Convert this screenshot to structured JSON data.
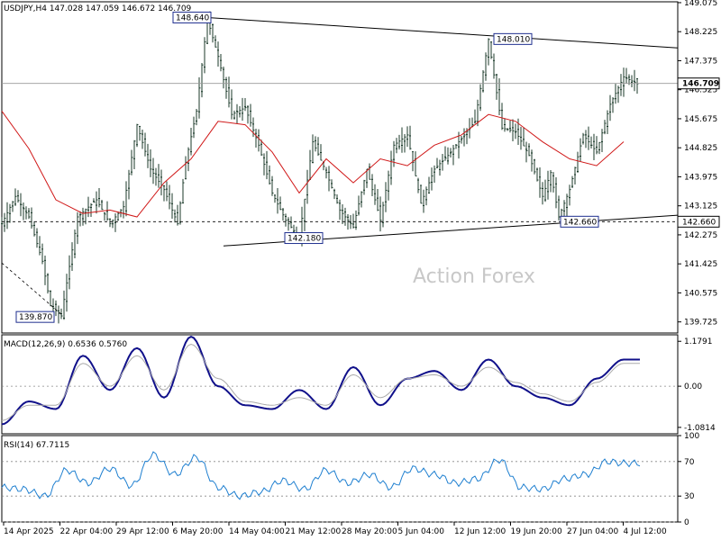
{
  "chart_data": [
    {
      "type": "candlestick",
      "header": "USDJPY,H4  147.028 147.059 146.672 146.709",
      "watermark": "Action Forex",
      "ylim": [
        139.4,
        149.1
      ],
      "y_ticks": [
        "149.075",
        "148.225",
        "147.375",
        "146.525",
        "145.675",
        "144.825",
        "143.975",
        "143.125",
        "142.275",
        "141.425",
        "140.575",
        "139.725"
      ],
      "y_tick_values": [
        149.075,
        148.225,
        147.375,
        146.525,
        145.675,
        144.825,
        143.975,
        143.125,
        142.275,
        141.425,
        140.575,
        139.725
      ],
      "last_price": "146.709",
      "last_price_value": 146.709,
      "support_level": "142.660",
      "support_value": 142.66,
      "x_ticks": [
        "14 Apr 2025",
        "22 Apr 04:00",
        "29 Apr 12:00",
        "6 May 20:00",
        "14 May 04:00",
        "21 May 12:00",
        "28 May 20:00",
        "5 Jun 04:00",
        "12 Jun 12:00",
        "19 Jun 20:00",
        "27 Jun 04:00",
        "4 Jul 12:00"
      ],
      "series": [
        {
          "name": "price",
          "x": [
            0,
            5,
            10,
            15,
            18,
            22,
            28,
            35,
            40,
            45,
            50,
            55,
            60,
            65,
            68,
            72,
            76,
            80,
            85,
            90,
            95,
            100,
            105,
            110,
            115,
            120,
            125,
            130,
            135,
            140,
            145,
            150,
            155,
            160,
            165,
            170,
            175,
            180,
            185,
            190,
            195,
            200,
            203,
            206,
            210,
            215,
            220,
            225,
            230,
            235,
            240,
            245,
            250
          ],
          "y": [
            142.6,
            143.4,
            142.8,
            141.5,
            140.2,
            139.9,
            142.8,
            143.3,
            142.6,
            143.1,
            145.5,
            144.2,
            143.6,
            142.6,
            144.4,
            145.9,
            148.6,
            147.5,
            145.8,
            146.0,
            144.9,
            143.5,
            142.7,
            142.2,
            145.0,
            144.1,
            143.0,
            142.5,
            144.2,
            142.7,
            144.9,
            145.2,
            143.2,
            144.2,
            144.6,
            145.1,
            145.6,
            148.0,
            145.4,
            145.3,
            144.6,
            143.4,
            144.1,
            142.8,
            143.6,
            145.2,
            144.7,
            146.1,
            146.9,
            146.7,
            146.7,
            146.7,
            146.7
          ]
        },
        {
          "name": "moving-average",
          "x": [
            0,
            10,
            20,
            30,
            40,
            50,
            60,
            70,
            80,
            90,
            100,
            110,
            120,
            130,
            140,
            150,
            160,
            170,
            180,
            190,
            200,
            210,
            220,
            230
          ],
          "y": [
            145.9,
            144.8,
            143.3,
            142.9,
            143.0,
            142.8,
            143.8,
            144.5,
            145.6,
            145.5,
            144.7,
            143.5,
            144.5,
            143.8,
            144.5,
            144.3,
            144.9,
            145.2,
            145.8,
            145.6,
            145.0,
            144.5,
            144.3,
            145.0
          ]
        }
      ],
      "trendlines": [
        {
          "label": "148.640",
          "value": 148.64
        },
        {
          "label": "148.010",
          "value": 148.01
        },
        {
          "label": "142.180",
          "value": 142.18
        },
        {
          "label": "142.660",
          "value": 142.66
        },
        {
          "label": "139.870",
          "value": 139.87
        }
      ]
    },
    {
      "type": "line",
      "header": "MACD(12,26,9) 0.6536 0.5760",
      "ylim": [
        -1.25,
        1.35
      ],
      "y_ticks": [
        "1.1791",
        "0.00",
        "-1.0814"
      ],
      "y_tick_values": [
        1.1791,
        0.0,
        -1.0814
      ],
      "series": [
        {
          "name": "macd",
          "x": [
            0,
            10,
            20,
            30,
            40,
            50,
            60,
            70,
            80,
            90,
            100,
            110,
            120,
            130,
            140,
            150,
            160,
            170,
            180,
            190,
            200,
            210,
            220,
            230
          ],
          "y": [
            -1.0,
            -0.4,
            -0.6,
            0.8,
            -0.1,
            1.0,
            -0.3,
            1.3,
            0.0,
            -0.5,
            -0.6,
            -0.1,
            -0.6,
            0.5,
            -0.5,
            0.2,
            0.4,
            -0.1,
            0.7,
            0.0,
            -0.3,
            -0.5,
            0.2,
            0.7
          ]
        },
        {
          "name": "signal",
          "x": [
            0,
            10,
            20,
            30,
            40,
            50,
            60,
            70,
            80,
            90,
            100,
            110,
            120,
            130,
            140,
            150,
            160,
            170,
            180,
            190,
            200,
            210,
            220,
            230
          ],
          "y": [
            -0.9,
            -0.5,
            -0.5,
            0.6,
            0.0,
            0.8,
            -0.1,
            1.1,
            0.2,
            -0.4,
            -0.5,
            -0.3,
            -0.5,
            0.3,
            -0.3,
            0.2,
            0.3,
            0.0,
            0.5,
            0.1,
            -0.2,
            -0.4,
            0.1,
            0.6
          ]
        }
      ]
    },
    {
      "type": "line",
      "header": "RSI(14) 67.7115",
      "ylim": [
        0,
        100
      ],
      "y_ticks": [
        "100",
        "70",
        "30",
        "0"
      ],
      "y_tick_values": [
        100,
        70,
        30,
        0
      ],
      "series": [
        {
          "name": "rsi",
          "x": [
            0,
            8,
            16,
            24,
            32,
            40,
            48,
            56,
            64,
            72,
            80,
            88,
            96,
            104,
            112,
            120,
            128,
            136,
            144,
            152,
            160,
            168,
            176,
            184,
            192,
            200,
            208,
            216,
            224,
            230
          ],
          "y": [
            40,
            38,
            30,
            60,
            45,
            62,
            42,
            78,
            55,
            75,
            40,
            30,
            35,
            48,
            38,
            60,
            45,
            55,
            40,
            62,
            55,
            45,
            50,
            72,
            40,
            38,
            50,
            55,
            70,
            68
          ]
        }
      ]
    }
  ]
}
